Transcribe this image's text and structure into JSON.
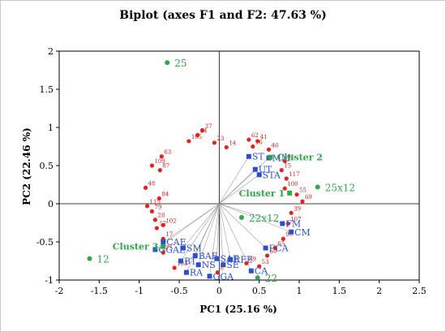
{
  "chart_data": {
    "type": "scatter",
    "title": "Biplot (axes F1 and F2: 47.63 %)",
    "xlabel": "PC1 (25.16 %)",
    "ylabel": "PC2 (22.46 %)",
    "xlim": [
      -2,
      2.5
    ],
    "ylim": [
      -1,
      2
    ],
    "xticks": [
      -2,
      -1.5,
      -1,
      -0.5,
      0,
      0.5,
      1,
      1.5,
      2,
      2.5
    ],
    "yticks": [
      -1,
      -0.5,
      0,
      0.5,
      1,
      1.5,
      2
    ],
    "grid": false,
    "colors": {
      "observations": "#e8221a",
      "variables": "#2b4fcf",
      "supplementary": "#2ea84a",
      "loadings": "#a0a0a0"
    },
    "observations": [
      {
        "label": "37",
        "x": -0.21,
        "y": 0.96
      },
      {
        "label": "54",
        "x": -0.27,
        "y": 0.9
      },
      {
        "label": "105",
        "x": -0.38,
        "y": 0.82
      },
      {
        "label": "23",
        "x": -0.06,
        "y": 0.8
      },
      {
        "label": "14",
        "x": 0.09,
        "y": 0.74
      },
      {
        "label": "62",
        "x": 0.37,
        "y": 0.84
      },
      {
        "label": "41",
        "x": 0.48,
        "y": 0.82
      },
      {
        "label": "16",
        "x": 0.42,
        "y": 0.75
      },
      {
        "label": "46",
        "x": 0.62,
        "y": 0.71
      },
      {
        "label": "63",
        "x": -0.72,
        "y": 0.62
      },
      {
        "label": "109",
        "x": -0.84,
        "y": 0.5
      },
      {
        "label": "87",
        "x": -0.74,
        "y": 0.44
      },
      {
        "label": "48",
        "x": -0.92,
        "y": 0.21
      },
      {
        "label": "84",
        "x": -0.75,
        "y": 0.07
      },
      {
        "label": "115",
        "x": -0.9,
        "y": -0.03
      },
      {
        "label": "79",
        "x": -0.84,
        "y": -0.1
      },
      {
        "label": "28",
        "x": -0.8,
        "y": -0.21
      },
      {
        "label": "102",
        "x": -0.7,
        "y": -0.28
      },
      {
        "label": "57",
        "x": -0.78,
        "y": -0.32
      },
      {
        "label": "17",
        "x": -0.7,
        "y": -0.46
      },
      {
        "label": "91",
        "x": 0.82,
        "y": 0.56
      },
      {
        "label": "15",
        "x": 0.78,
        "y": 0.44
      },
      {
        "label": "117",
        "x": 0.84,
        "y": 0.33
      },
      {
        "label": "100",
        "x": 0.82,
        "y": 0.2
      },
      {
        "label": "55",
        "x": 0.97,
        "y": 0.12
      },
      {
        "label": "69",
        "x": 1.04,
        "y": 0.03
      },
      {
        "label": "39",
        "x": 0.9,
        "y": -0.12
      },
      {
        "label": "107",
        "x": 0.86,
        "y": -0.26
      },
      {
        "label": "90",
        "x": 0.8,
        "y": -0.46
      },
      {
        "label": "65",
        "x": 0.7,
        "y": -0.58
      },
      {
        "label": "60",
        "x": 0.6,
        "y": -0.68
      },
      {
        "label": "53",
        "x": 0.5,
        "y": -0.82
      },
      {
        "label": "89",
        "x": 0.34,
        "y": -0.78
      },
      {
        "label": "75",
        "x": -0.7,
        "y": -0.64
      },
      {
        "label": "103",
        "x": -0.56,
        "y": -0.84
      },
      {
        "label": "8",
        "x": -0.02,
        "y": -0.9
      }
    ],
    "variables": [
      {
        "label": "MM",
        "x": 0.62,
        "y": 0.6
      },
      {
        "label": "ST",
        "x": 0.37,
        "y": 0.62
      },
      {
        "label": "UT",
        "x": 0.45,
        "y": 0.45
      },
      {
        "label": "STA",
        "x": 0.5,
        "y": 0.38
      },
      {
        "label": "FM",
        "x": 0.79,
        "y": -0.26
      },
      {
        "label": "CM",
        "x": 0.9,
        "y": -0.37
      },
      {
        "label": "FCA",
        "x": 0.58,
        "y": -0.58
      },
      {
        "label": "CAE",
        "x": -0.7,
        "y": -0.5
      },
      {
        "label": "SM",
        "x": -0.45,
        "y": -0.58
      },
      {
        "label": "GGAE",
        "x": -0.8,
        "y": -0.6
      },
      {
        "label": "BAE",
        "x": -0.3,
        "y": -0.68
      },
      {
        "label": "SAE",
        "x": -0.03,
        "y": -0.72
      },
      {
        "label": "BT",
        "x": -0.48,
        "y": -0.75
      },
      {
        "label": "NS",
        "x": -0.26,
        "y": -0.8
      },
      {
        "label": "RFE",
        "x": 0.14,
        "y": -0.73
      },
      {
        "label": "RA",
        "x": -0.41,
        "y": -0.9
      },
      {
        "label": "GGA",
        "x": -0.12,
        "y": -0.95
      },
      {
        "label": "CA",
        "x": 0.4,
        "y": -0.88
      },
      {
        "label": "SE",
        "x": 0.05,
        "y": -0.8
      }
    ],
    "supplementary": [
      {
        "label": "25",
        "x": -0.65,
        "y": 1.85
      },
      {
        "label": "12",
        "x": -1.62,
        "y": -0.72
      },
      {
        "label": "25x12",
        "x": 1.23,
        "y": 0.22
      },
      {
        "label": "22x12",
        "x": 0.28,
        "y": -0.18
      },
      {
        "label": "22",
        "x": 0.48,
        "y": -0.97
      }
    ],
    "clusters": [
      {
        "label": "Cluster 1",
        "x": 0.88,
        "y": 0.14
      },
      {
        "label": "Cluster 2",
        "x": 0.64,
        "y": 0.61
      },
      {
        "label": "Cluster 3",
        "x": -0.7,
        "y": -0.56
      }
    ]
  }
}
